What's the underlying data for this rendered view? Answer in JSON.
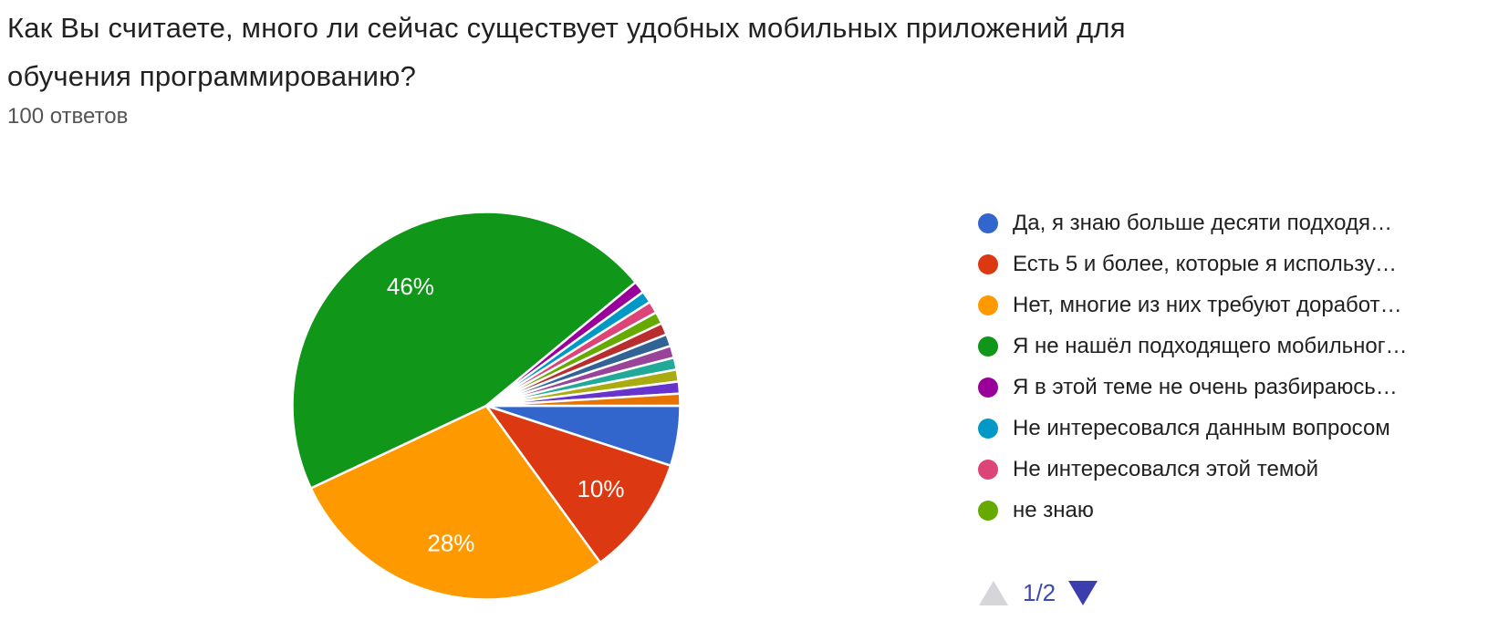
{
  "header": {
    "title_lines": [
      "Как Вы считаете, много ли сейчас существует удобных мобильных приложений для",
      "обучения программированию?"
    ],
    "responses_label": "100 ответов"
  },
  "chart_data": {
    "type": "pie",
    "title": "Как Вы считаете, много ли сейчас существует удобных мобильных приложений для обучения программированию?",
    "subtitle": "100 ответов",
    "total_responses": 100,
    "start_angle_deg": 90,
    "direction": "clockwise",
    "legend_position": "right",
    "slice_border_color": "#ffffff",
    "label_radius_ratio": 0.73,
    "slices": [
      {
        "label": "Да, я знаю больше десяти подходя…",
        "value_pct": 5,
        "color": "#3366CC"
      },
      {
        "label": "Есть 5 и более, которые я использу…",
        "value_pct": 10,
        "color": "#DC3912",
        "data_label": "10%"
      },
      {
        "label": "Нет, многие из них требуют доработ…",
        "value_pct": 28,
        "color": "#FF9900",
        "data_label": "28%"
      },
      {
        "label": "Я не нашёл подходящего мобильног…",
        "value_pct": 46,
        "color": "#109618",
        "data_label": "46%"
      },
      {
        "label": "Я в этой теме не очень разбираюсь…",
        "value_pct": 1,
        "color": "#990099"
      },
      {
        "label": "Не интересовался данным вопросом",
        "value_pct": 1,
        "color": "#0099C6"
      },
      {
        "label": "Не интересовался этой темой",
        "value_pct": 1,
        "color": "#DD4477"
      },
      {
        "label": "не знаю",
        "value_pct": 1,
        "color": "#66AA00"
      },
      {
        "value_pct": 1,
        "color": "#B82E2E"
      },
      {
        "value_pct": 1,
        "color": "#316395"
      },
      {
        "value_pct": 1,
        "color": "#994499"
      },
      {
        "value_pct": 1,
        "color": "#22AA99"
      },
      {
        "value_pct": 1,
        "color": "#AAAA11"
      },
      {
        "value_pct": 1,
        "color": "#6633CC"
      },
      {
        "value_pct": 1,
        "color": "#E67300"
      }
    ]
  },
  "legend": {
    "visible_count": 8,
    "pagination": {
      "text": "1/2",
      "prev_enabled": false,
      "next_enabled": true,
      "up_arrow_color": "#d6d6da",
      "down_arrow_color": "#3b3eac",
      "text_color": "#3b4cae"
    }
  }
}
